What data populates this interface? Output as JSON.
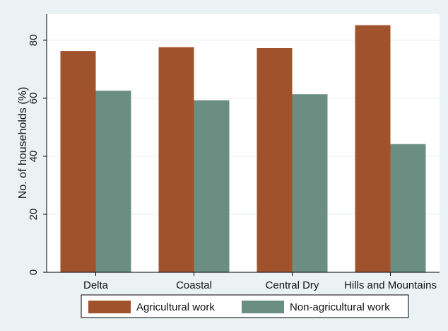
{
  "chart_data": {
    "type": "bar",
    "categories": [
      "Delta",
      "Coastal",
      "Central Dry",
      "Hills and Mountains"
    ],
    "series": [
      {
        "name": "Agricultural work",
        "color": "#a0522d",
        "values": [
          76.3,
          77.6,
          77.3,
          85.2
        ]
      },
      {
        "name": "Non-agricultural work",
        "color": "#6b8e82",
        "values": [
          62.6,
          59.3,
          61.4,
          44.2
        ]
      }
    ],
    "title": "",
    "xlabel": "",
    "ylabel": "No. of households (%)",
    "ylim": [
      0,
      89
    ],
    "yticks": [
      0,
      20,
      40,
      60,
      80
    ],
    "grid": true,
    "legend_position": "bottom"
  }
}
